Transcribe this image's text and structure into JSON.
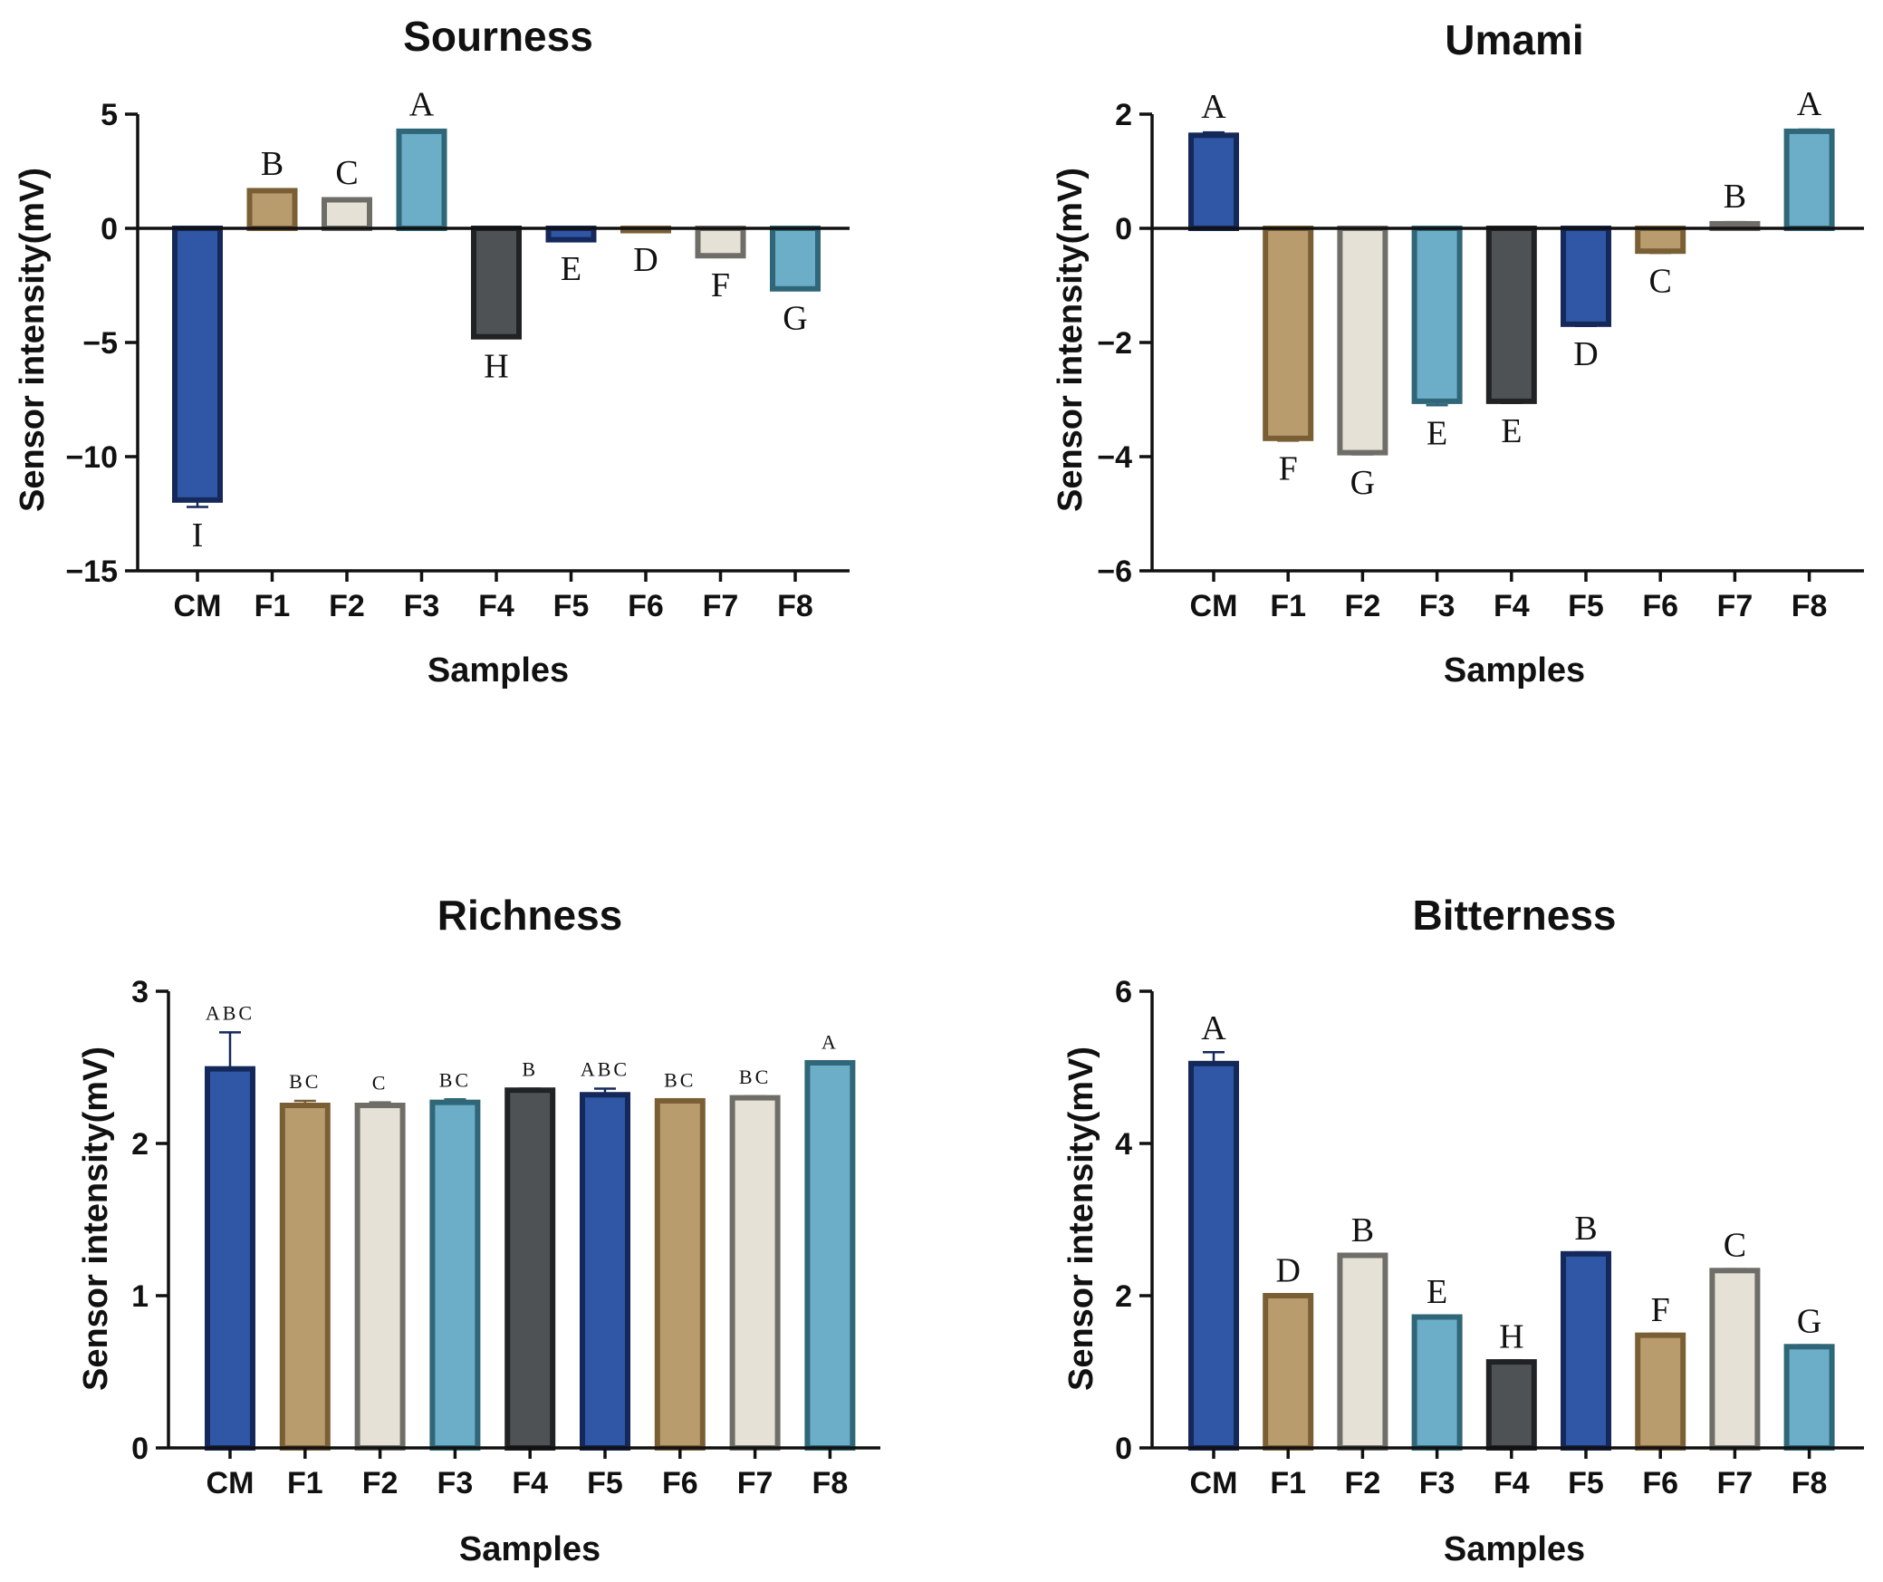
{
  "colors": {
    "CM": {
      "fill": "#2f57a5",
      "stroke": "#14285a"
    },
    "F1": {
      "fill": "#b89c6e",
      "stroke": "#7a5f35"
    },
    "F2": {
      "fill": "#e5e1d6",
      "stroke": "#6f6d68"
    },
    "F3": {
      "fill": "#6cadc7",
      "stroke": "#2f6678"
    },
    "F4": {
      "fill": "#4f5255",
      "stroke": "#202224"
    },
    "F5": {
      "fill": "#2f57a5",
      "stroke": "#14285a"
    },
    "F6": {
      "fill": "#b89c6e",
      "stroke": "#7a5f35"
    },
    "F7": {
      "fill": "#e5e1d6",
      "stroke": "#6f6d68"
    },
    "F8": {
      "fill": "#6cadc7",
      "stroke": "#2f6678"
    }
  },
  "chart_data": [
    {
      "id": "sourness",
      "type": "bar",
      "title": "Sourness",
      "xlabel": "Samples",
      "ylabel": "Sensor intensity(mV)",
      "ylim": [
        -15,
        5
      ],
      "yticks": [
        5,
        0,
        -5,
        -10,
        -15
      ],
      "ytick_labels": [
        "5",
        "0",
        "−5",
        "−10",
        "−15"
      ],
      "categories": [
        "CM",
        "F1",
        "F2",
        "F3",
        "F4",
        "F5",
        "F6",
        "F7",
        "F8"
      ],
      "values": [
        -11.9,
        1.65,
        1.25,
        4.25,
        -4.75,
        -0.5,
        -0.1,
        -1.2,
        -2.65
      ],
      "errors": [
        0.3,
        0.05,
        0.05,
        0.05,
        0.05,
        0.05,
        0.05,
        0.05,
        0.05
      ],
      "significance": [
        "I",
        "B",
        "C",
        "A",
        "H",
        "E",
        "D",
        "F",
        "G"
      ]
    },
    {
      "id": "umami",
      "type": "bar",
      "title": "Umami",
      "xlabel": "Samples",
      "ylabel": "Sensor intensity(mV)",
      "ylim": [
        -6,
        2
      ],
      "yticks": [
        2,
        0,
        -2,
        -4,
        -6
      ],
      "ytick_labels": [
        "2",
        "0",
        "−2",
        "−4",
        "−6"
      ],
      "categories": [
        "CM",
        "F1",
        "F2",
        "F3",
        "F4",
        "F5",
        "F6",
        "F7",
        "F8"
      ],
      "values": [
        1.63,
        -3.68,
        -3.93,
        -3.03,
        -3.03,
        -1.68,
        -0.4,
        0.08,
        1.7
      ],
      "errors": [
        0.05,
        0.04,
        0.03,
        0.07,
        0.03,
        0.03,
        0.03,
        0.03,
        0.03
      ],
      "significance": [
        "A",
        "F",
        "G",
        "E",
        "E",
        "D",
        "C",
        "B",
        "A"
      ]
    },
    {
      "id": "richness",
      "type": "bar",
      "title": "Richness",
      "xlabel": "Samples",
      "ylabel": "Sensor intensity(mV)",
      "ylim": [
        0,
        3
      ],
      "yticks": [
        3,
        2,
        1,
        0
      ],
      "ytick_labels": [
        "3",
        "2",
        "1",
        "0"
      ],
      "categories": [
        "CM",
        "F1",
        "F2",
        "F3",
        "F4",
        "F5",
        "F6",
        "F7",
        "F8"
      ],
      "values": [
        2.49,
        2.25,
        2.25,
        2.27,
        2.35,
        2.32,
        2.28,
        2.3,
        2.53
      ],
      "errors": [
        0.24,
        0.03,
        0.02,
        0.02,
        0.01,
        0.04,
        0.01,
        0.01,
        0.01
      ],
      "significance": [
        "ABC",
        "BC",
        "C",
        "BC",
        "B",
        "ABC",
        "BC",
        "BC",
        "A"
      ]
    },
    {
      "id": "bitterness",
      "type": "bar",
      "title": "Bitterness",
      "xlabel": "Samples",
      "ylabel": "Sensor intensity(mV)",
      "ylim": [
        0,
        6
      ],
      "yticks": [
        6,
        4,
        2,
        0
      ],
      "ytick_labels": [
        "6",
        "4",
        "2",
        "0"
      ],
      "categories": [
        "CM",
        "F1",
        "F2",
        "F3",
        "F4",
        "F5",
        "F6",
        "F7",
        "F8"
      ],
      "values": [
        5.05,
        2.0,
        2.53,
        1.72,
        1.13,
        2.55,
        1.48,
        2.33,
        1.33
      ],
      "errors": [
        0.15,
        0.02,
        0.02,
        0.02,
        0.02,
        0.02,
        0.02,
        0.02,
        0.02
      ],
      "significance": [
        "A",
        "D",
        "B",
        "E",
        "H",
        "B",
        "F",
        "C",
        "G"
      ]
    }
  ]
}
